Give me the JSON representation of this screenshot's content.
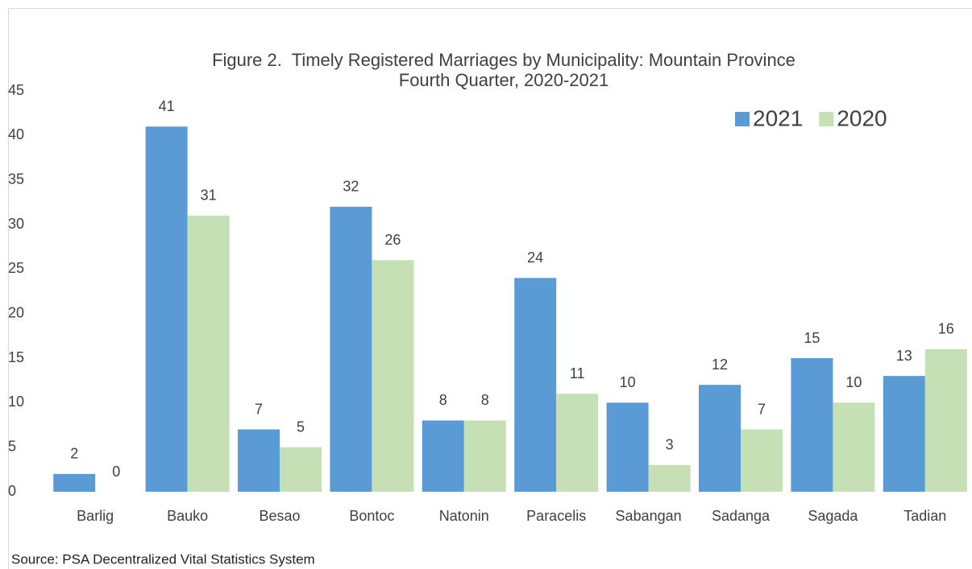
{
  "chart_data": {
    "type": "bar",
    "title": "Figure 2.  Timely Registered Marriages by Municipality: Mountain Province",
    "subtitle": "Fourth Quarter, 2020-2021",
    "categories": [
      "Barlig",
      "Bauko",
      "Besao",
      "Bontoc",
      "Natonin",
      "Paracelis",
      "Sabangan",
      "Sadanga",
      "Sagada",
      "Tadian"
    ],
    "series": [
      {
        "name": "2021",
        "color": "#5b9bd5",
        "values": [
          2,
          41,
          7,
          32,
          8,
          24,
          10,
          12,
          15,
          13
        ]
      },
      {
        "name": "2020",
        "color": "#c5e0b4",
        "values": [
          0,
          31,
          5,
          26,
          8,
          11,
          3,
          7,
          10,
          16
        ]
      }
    ],
    "ylim": [
      0,
      45
    ],
    "yticks": [
      0,
      5,
      10,
      15,
      20,
      25,
      30,
      35,
      40,
      45
    ],
    "grid": false,
    "legend": "top-right",
    "source": "Source: PSA Decentralized Vital Statistics System"
  }
}
